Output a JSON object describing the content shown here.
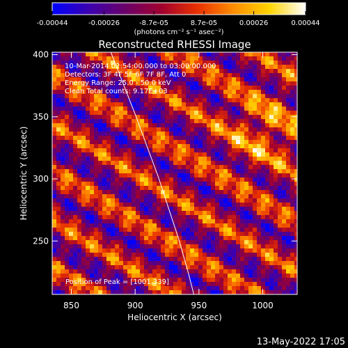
{
  "colorbar": {
    "tick_labels": [
      "-0.00044",
      "-0.00026",
      "-8.7e-05",
      "8.7e-05",
      "0.00026",
      "0.00044"
    ],
    "tick_values": [
      -0.00044,
      -0.00026,
      -8.7e-05,
      8.7e-05,
      0.00026,
      0.00044
    ],
    "range": [
      -0.00044,
      0.00044
    ],
    "units_label": "(photons cm⁻² s⁻¹ asec⁻²)",
    "colors": [
      "#0000ff",
      "#3b00b0",
      "#6a006a",
      "#a00030",
      "#e83000",
      "#ff8c00",
      "#ffd400",
      "#ffffff"
    ]
  },
  "chart_data": {
    "type": "heatmap",
    "title": "Reconstructed RHESSI Image",
    "xlabel": "Heliocentric X (arcsec)",
    "ylabel": "Heliocentric Y (arcsec)",
    "xlim": [
      835,
      1027
    ],
    "ylim": [
      207,
      402
    ],
    "xticks": [
      850,
      900,
      950,
      1000
    ],
    "yticks": [
      250,
      300,
      350,
      400
    ],
    "annotations": {
      "time": "10-Mar-2014 02:54:00.000 to 03:00:00.000",
      "detectors": "Detectors: 3F 4F 5F 6F 7F 8F, Att 0",
      "energy": "Energy Range: 25.0 - 50.0 keV",
      "clean": "Clean     Total counts: 9.17E+03",
      "peak": "Position of Peak = [1001,339]"
    },
    "limb_curve": [
      [
        881,
        402
      ],
      [
        900,
        352
      ],
      [
        918,
        302
      ],
      [
        934,
        252
      ],
      [
        941,
        227
      ],
      [
        946,
        207
      ]
    ],
    "peak_position": [
      1001,
      339
    ]
  },
  "footer": {
    "date": "13-May-2022 17:05"
  }
}
